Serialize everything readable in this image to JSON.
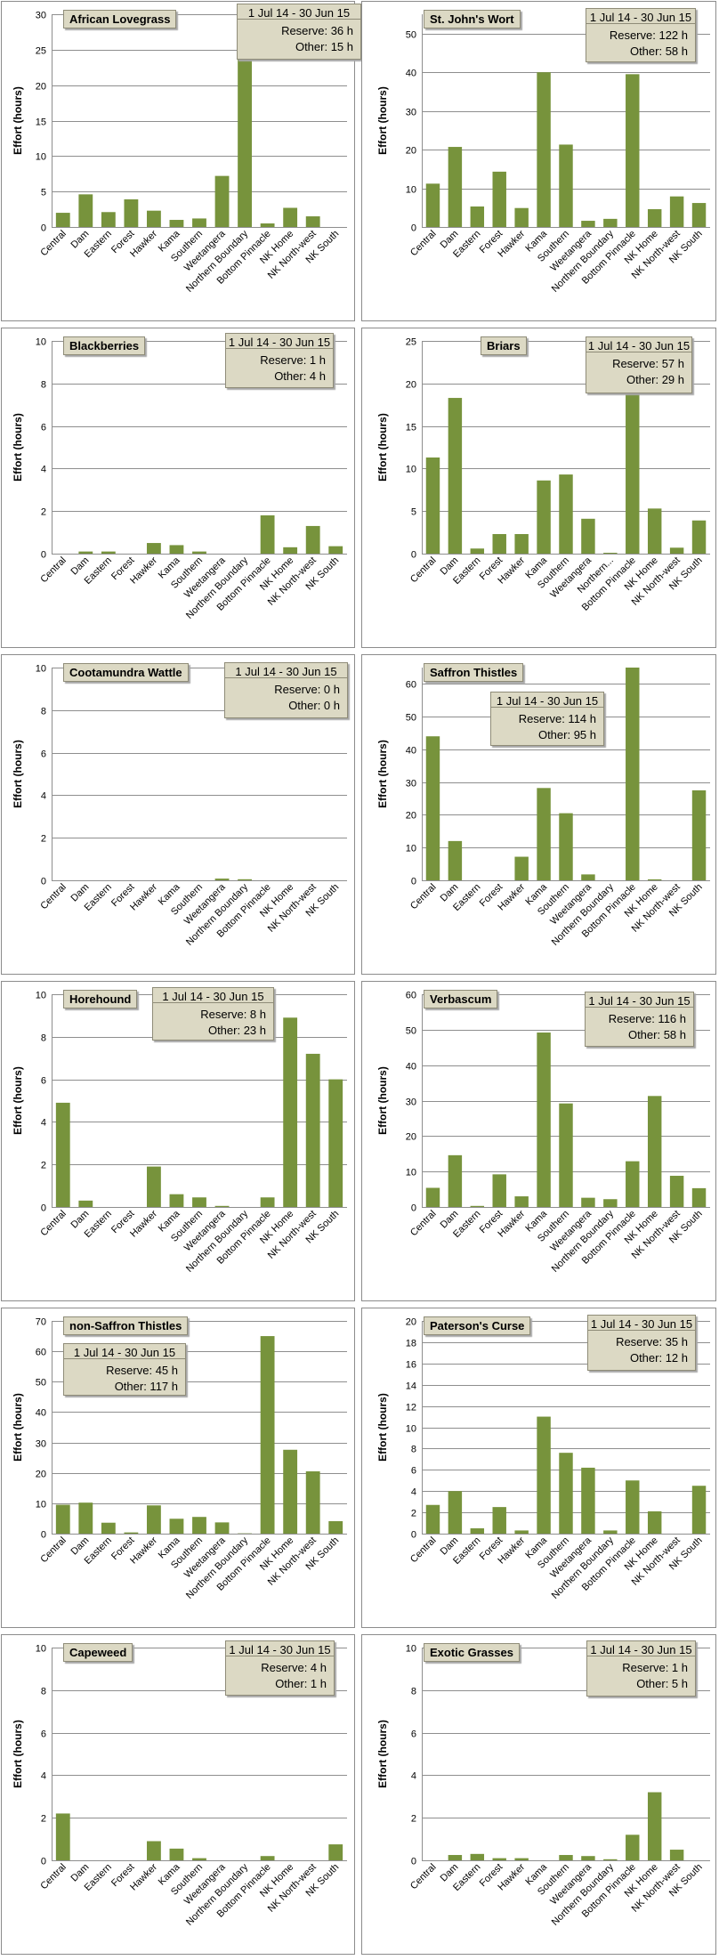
{
  "y_axis_label": "Effort  (hours)",
  "colors": {
    "bar": "#77933c",
    "grid": "#8e8e8e",
    "box": "#dcd9c4"
  },
  "chart_data": [
    {
      "type": "bar",
      "title": "African Lovegrass",
      "ylim": [
        0,
        30
      ],
      "ystep": 5,
      "categories": [
        "Central",
        "Dam",
        "Eastern",
        "Forest",
        "Hawker",
        "Kama",
        "Southern",
        "Weetangera",
        "Northern Boundary",
        "Bottom Pinnacle",
        "NK Home",
        "NK North-west",
        "NK South"
      ],
      "values": [
        2,
        4.6,
        2.1,
        3.9,
        2.3,
        1,
        1.2,
        7.2,
        25.5,
        0.5,
        2.7,
        1.5,
        0
      ],
      "date_range": "1 Jul 14  -  30 Jun 15",
      "reserve": "Reserve: 36 h",
      "other": "Other: 15 h"
    },
    {
      "type": "bar",
      "title": "St. John's Wort",
      "ylim": [
        0,
        55
      ],
      "ystep": 10,
      "categories": [
        "Central",
        "Dam",
        "Eastern",
        "Forest",
        "Hawker",
        "Kama",
        "Southern",
        "Weetangera",
        "Northern Boundary",
        "Bottom Pinnacle",
        "NK Home",
        "NK North-west",
        "NK South"
      ],
      "values": [
        11.2,
        20.7,
        5.3,
        14.3,
        4.9,
        40,
        21.3,
        1.6,
        2.1,
        39.5,
        4.6,
        7.9,
        6.2
      ],
      "date_range": "1 Jul 14  -  30 Jun 15",
      "reserve": "Reserve: 122 h",
      "other": "Other: 58 h"
    },
    {
      "type": "bar",
      "title": "Blackberries",
      "ylim": [
        0,
        10
      ],
      "ystep": 2,
      "categories": [
        "Central",
        "Dam",
        "Eastern",
        "Forest",
        "Hawker",
        "Kama",
        "Southern",
        "Weetangera",
        "Northern Boundary",
        "Bottom Pinnacle",
        "NK Home",
        "NK North-west",
        "NK South"
      ],
      "values": [
        0,
        0.1,
        0.1,
        0,
        0.5,
        0.4,
        0.1,
        0,
        0,
        1.8,
        0.3,
        1.3,
        0.35
      ],
      "date_range": "1 Jul 14  -  30 Jun 15",
      "reserve": "Reserve: 1 h",
      "other": "Other: 4 h"
    },
    {
      "type": "bar",
      "title": "Briars",
      "ylim": [
        0,
        25
      ],
      "ystep": 5,
      "categories": [
        "Central",
        "Dam",
        "Eastern",
        "Forest",
        "Hawker",
        "Kama",
        "Southern",
        "Weetangera",
        "Northern...",
        "Bottom Pinnacle",
        "NK Home",
        "NK North-west",
        "NK South"
      ],
      "values": [
        11.3,
        18.3,
        0.6,
        2.3,
        2.3,
        8.6,
        9.3,
        4.1,
        0.1,
        18.7,
        5.3,
        0.7,
        3.9
      ],
      "date_range": "1 Jul 14  -  30 Jun 15",
      "reserve": "Reserve: 57 h",
      "other": "Other: 29 h"
    },
    {
      "type": "bar",
      "title": "Cootamundra Wattle",
      "ylim": [
        0,
        10
      ],
      "ystep": 2,
      "categories": [
        "Central",
        "Dam",
        "Eastern",
        "Forest",
        "Hawker",
        "Kama",
        "Southern",
        "Weetangera",
        "Northern Boundary",
        "Bottom Pinnacle",
        "NK Home",
        "NK North-west",
        "NK South"
      ],
      "values": [
        0,
        0,
        0,
        0,
        0,
        0,
        0,
        0.08,
        0.05,
        0,
        0,
        0,
        0
      ],
      "date_range": "1 Jul 14  -  30 Jun 15",
      "reserve": "Reserve: 0 h",
      "other": "Other: 0 h"
    },
    {
      "type": "bar",
      "title": "Saffron Thistles",
      "ylim": [
        0,
        65
      ],
      "ystep": 10,
      "categories": [
        "Central",
        "Dam",
        "Eastern",
        "Forest",
        "Hawker",
        "Kama",
        "Southern",
        "Weetangera",
        "Northern Boundary",
        "Bottom Pinnacle",
        "NK Home",
        "NK North-west",
        "NK South"
      ],
      "values": [
        44,
        12,
        0,
        0,
        7.2,
        28.2,
        20.5,
        1.8,
        0,
        65,
        0.3,
        0,
        27.5
      ],
      "date_range": "1 Jul 14  -  30 Jun 15",
      "reserve": "Reserve: 114 h",
      "other": "Other: 95 h"
    },
    {
      "type": "bar",
      "title": "Horehound",
      "ylim": [
        0,
        10
      ],
      "ystep": 2,
      "categories": [
        "Central",
        "Dam",
        "Eastern",
        "Forest",
        "Hawker",
        "Kama",
        "Southern",
        "Weetangera",
        "Northern Boundary",
        "Bottom Pinnacle",
        "NK Home",
        "NK North-west",
        "NK South"
      ],
      "values": [
        4.9,
        0.3,
        0,
        0,
        1.9,
        0.6,
        0.45,
        0.05,
        0,
        0.45,
        8.9,
        7.2,
        6
      ],
      "date_range": "1 Jul 14  -  30 Jun 15",
      "reserve": "Reserve: 8 h",
      "other": "Other: 23 h"
    },
    {
      "type": "bar",
      "title": "Verbascum",
      "ylim": [
        0,
        60
      ],
      "ystep": 10,
      "categories": [
        "Central",
        "Dam",
        "Eastern",
        "Forest",
        "Hawker",
        "Kama",
        "Southern",
        "Weetangera",
        "Northern Boundary",
        "Bottom Pinnacle",
        "NK Home",
        "NK North-west",
        "NK South"
      ],
      "values": [
        5.4,
        14.6,
        0.3,
        9.2,
        3,
        49.2,
        29.2,
        2.6,
        2.2,
        12.9,
        31.3,
        8.8,
        5.3
      ],
      "date_range": "1 Jul 14  -  30 Jun 15",
      "reserve": "Reserve: 116 h",
      "other": "Other: 58 h"
    },
    {
      "type": "bar",
      "title": "non-Saffron Thistles",
      "ylim": [
        0,
        70
      ],
      "ystep": 10,
      "categories": [
        "Central",
        "Dam",
        "Eastern",
        "Forest",
        "Hawker",
        "Kama",
        "Southern",
        "Weetangera",
        "Northern Boundary",
        "Bottom Pinnacle",
        "NK Home",
        "NK North-west",
        "NK South"
      ],
      "values": [
        9.5,
        10.2,
        3.6,
        0.4,
        9.3,
        4.9,
        5.5,
        3.7,
        0.1,
        65,
        27.6,
        20.5,
        4.1
      ],
      "date_range": "1 Jul 14  -  30 Jun 15",
      "reserve": "Reserve: 45 h",
      "other": "Other: 117 h"
    },
    {
      "type": "bar",
      "title": "Paterson's Curse",
      "ylim": [
        0,
        20
      ],
      "ystep": 2,
      "categories": [
        "Central",
        "Dam",
        "Eastern",
        "Forest",
        "Hawker",
        "Kama",
        "Southern",
        "Weetangera",
        "Northern Boundary",
        "Bottom Pinnacle",
        "NK Home",
        "NK North-west",
        "NK South"
      ],
      "values": [
        2.7,
        4,
        0.5,
        2.5,
        0.3,
        11,
        7.6,
        6.2,
        0.3,
        5,
        2.1,
        0,
        4.5
      ],
      "date_range": "1 Jul 14  -  30 Jun 15",
      "reserve": "Reserve: 35 h",
      "other": "Other: 12 h"
    },
    {
      "type": "bar",
      "title": "Capeweed",
      "ylim": [
        0,
        10
      ],
      "ystep": 2,
      "categories": [
        "Central",
        "Dam",
        "Eastern",
        "Forest",
        "Hawker",
        "Kama",
        "Southern",
        "Weetangera",
        "Northern Boundary",
        "Bottom Pinnacle",
        "NK Home",
        "NK North-west",
        "NK South"
      ],
      "values": [
        2.2,
        0,
        0,
        0,
        0.9,
        0.55,
        0.1,
        0,
        0,
        0.2,
        0,
        0,
        0.75
      ],
      "date_range": "1 Jul 14  -  30 Jun 15",
      "reserve": "Reserve: 4 h",
      "other": "Other: 1 h"
    },
    {
      "type": "bar",
      "title": "Exotic Grasses",
      "ylim": [
        0,
        10
      ],
      "ystep": 2,
      "categories": [
        "Central",
        "Dam",
        "Eastern",
        "Forest",
        "Hawker",
        "Kama",
        "Southern",
        "Weetangera",
        "Northern Boundary",
        "Bottom Pinnacle",
        "NK Home",
        "NK North-west",
        "NK South"
      ],
      "values": [
        0,
        0.25,
        0.3,
        0.1,
        0.1,
        0,
        0.25,
        0.2,
        0.05,
        1.2,
        3.2,
        0.5,
        0
      ],
      "date_range": "1 Jul 14  -  30 Jun 15",
      "reserve": "Reserve: 1 h",
      "other": "Other: 5 h"
    }
  ]
}
